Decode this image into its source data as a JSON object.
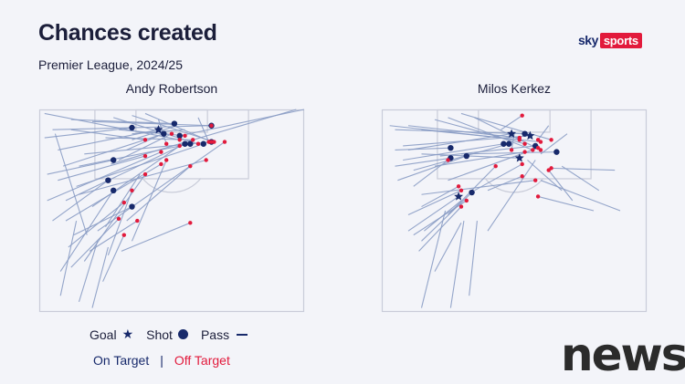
{
  "header": {
    "title": "Chances created",
    "subtitle": "Premier League, 2024/25"
  },
  "logo": {
    "sky": "sky",
    "sports": "sports"
  },
  "watermark": "news",
  "colors": {
    "on_target": "#17296b",
    "off_target": "#e21a3c",
    "pass_line": "#8a9cc4",
    "pitch_line": "#c9ccd9",
    "background": "#f3f4f9"
  },
  "legend": {
    "goal": "Goal",
    "shot": "Shot",
    "pass": "Pass",
    "on_target": "On Target",
    "separator": "|",
    "off_target": "Off Target"
  },
  "chart_data": [
    {
      "type": "scatter",
      "title": "Andy Robertson",
      "pitch": "half-pitch, attacking goal at top",
      "chances": [
        {
          "from": [
            0.07,
            0.2
          ],
          "to": [
            0.45,
            0.1
          ],
          "outcome": "goal"
        },
        {
          "from": [
            0.02,
            0.14
          ],
          "to": [
            0.35,
            0.09
          ],
          "outcome": "shot_on"
        },
        {
          "from": [
            0.12,
            0.05
          ],
          "to": [
            0.51,
            0.07
          ],
          "outcome": "shot_on"
        },
        {
          "from": [
            0.09,
            0.28
          ],
          "to": [
            0.47,
            0.12
          ],
          "outcome": "shot_on"
        },
        {
          "from": [
            0.1,
            0.45
          ],
          "to": [
            0.55,
            0.17
          ],
          "outcome": "shot_on"
        },
        {
          "from": [
            0.03,
            0.32
          ],
          "to": [
            0.28,
            0.25
          ],
          "outcome": "shot_on"
        },
        {
          "from": [
            0.05,
            0.55
          ],
          "to": [
            0.26,
            0.35
          ],
          "outcome": "shot_on"
        },
        {
          "from": [
            0.13,
            0.62
          ],
          "to": [
            0.35,
            0.48
          ],
          "outcome": "shot_on"
        },
        {
          "from": [
            0.08,
            0.8
          ],
          "to": [
            0.28,
            0.4
          ],
          "outcome": "shot_on"
        },
        {
          "from": [
            0.15,
            0.28
          ],
          "to": [
            0.57,
            0.17
          ],
          "outcome": "shot_on"
        },
        {
          "from": [
            0.14,
            0.38
          ],
          "to": [
            0.62,
            0.17
          ],
          "outcome": "shot_on"
        },
        {
          "from": [
            0.17,
            0.22
          ],
          "to": [
            0.65,
            0.16
          ],
          "outcome": "shot_on"
        },
        {
          "from": [
            1.0,
            0.0
          ],
          "to": [
            0.53,
            0.13
          ],
          "outcome": "shot_on"
        },
        {
          "from": [
            0.05,
            0.1
          ],
          "to": [
            0.65,
            0.08
          ],
          "outcome": "shot_on"
        },
        {
          "from": [
            0.22,
            0.6
          ],
          "to": [
            0.7,
            0.16
          ],
          "outcome": "shot_off"
        },
        {
          "from": [
            0.15,
            0.42
          ],
          "to": [
            0.63,
            0.25
          ],
          "outcome": "shot_off"
        },
        {
          "from": [
            0.2,
            0.48
          ],
          "to": [
            0.53,
            0.18
          ],
          "outcome": "shot_off"
        },
        {
          "from": [
            0.03,
            0.45
          ],
          "to": [
            0.46,
            0.21
          ],
          "outcome": "shot_off"
        },
        {
          "from": [
            0.07,
            0.35
          ],
          "to": [
            0.4,
            0.23
          ],
          "outcome": "shot_off"
        },
        {
          "from": [
            0.1,
            0.55
          ],
          "to": [
            0.46,
            0.27
          ],
          "outcome": "shot_off"
        },
        {
          "from": [
            0.17,
            0.75
          ],
          "to": [
            0.4,
            0.32
          ],
          "outcome": "shot_off"
        },
        {
          "from": [
            0.26,
            0.72
          ],
          "to": [
            0.35,
            0.4
          ],
          "outcome": "shot_off"
        },
        {
          "from": [
            0.11,
            0.68
          ],
          "to": [
            0.32,
            0.46
          ],
          "outcome": "shot_off"
        },
        {
          "from": [
            0.12,
            0.78
          ],
          "to": [
            0.3,
            0.54
          ],
          "outcome": "shot_off"
        },
        {
          "from": [
            0.19,
            0.7
          ],
          "to": [
            0.37,
            0.55
          ],
          "outcome": "shot_off"
        },
        {
          "from": [
            0.33,
            0.55
          ],
          "to": [
            0.57,
            0.28
          ],
          "outcome": "shot_off"
        },
        {
          "from": [
            0.24,
            0.85
          ],
          "to": [
            0.32,
            0.62
          ],
          "outcome": "shot_off"
        },
        {
          "from": [
            0.31,
            0.7
          ],
          "to": [
            0.57,
            0.56
          ],
          "outcome": "shot_off"
        },
        {
          "from": [
            0.35,
            0.65
          ],
          "to": [
            0.48,
            0.25
          ],
          "outcome": "shot_off"
        },
        {
          "from": [
            0.2,
            0.06
          ],
          "to": [
            0.65,
            0.08
          ],
          "outcome": "shot_off"
        },
        {
          "from": [
            0.3,
            0.1
          ],
          "to": [
            0.55,
            0.13
          ],
          "outcome": "shot_off"
        },
        {
          "from": [
            0.28,
            0.04
          ],
          "to": [
            0.6,
            0.17
          ],
          "outcome": "shot_off"
        },
        {
          "from": [
            0.12,
            0.1
          ],
          "to": [
            0.4,
            0.15
          ],
          "outcome": "shot_off"
        },
        {
          "from": [
            0.4,
            0.02
          ],
          "to": [
            0.65,
            0.16
          ],
          "outcome": "shot_off"
        },
        {
          "from": [
            0.45,
            0.05
          ],
          "to": [
            0.48,
            0.17
          ],
          "outcome": "shot_off"
        },
        {
          "from": [
            0.35,
            0.03
          ],
          "to": [
            0.66,
            0.16
          ],
          "outcome": "shot_off"
        },
        {
          "from": [
            0.6,
            0.04
          ],
          "to": [
            0.64,
            0.16
          ],
          "outcome": "shot_off"
        },
        {
          "from": [
            0.02,
            0.02
          ],
          "to": [
            0.53,
            0.15
          ],
          "outcome": "shot_off"
        },
        {
          "from": [
            0.3,
            0.25
          ],
          "to": [
            0.5,
            0.12
          ],
          "outcome": "shot_off"
        },
        {
          "from": [
            0.25,
            0.14
          ],
          "to": [
            0.58,
            0.15
          ],
          "outcome": "shot_off"
        },
        {
          "from": [
            0.97,
            0.0
          ],
          "to": [
            0.27,
            0.27
          ],
          "outcome": "pass"
        },
        {
          "from": [
            0.06,
            0.12
          ],
          "to": [
            0.18,
            0.62
          ],
          "outcome": "pass"
        },
        {
          "from": [
            0.25,
            0.58
          ],
          "to": [
            0.38,
            0.32
          ],
          "outcome": "pass"
        },
        {
          "from": [
            0.08,
            0.92
          ],
          "to": [
            0.14,
            0.55
          ],
          "outcome": "pass"
        },
        {
          "from": [
            0.15,
            0.95
          ],
          "to": [
            0.22,
            0.65
          ],
          "outcome": "pass"
        },
        {
          "from": [
            0.2,
            0.98
          ],
          "to": [
            0.26,
            0.68
          ],
          "outcome": "pass"
        },
        {
          "from": [
            0.52,
            0.08
          ],
          "to": [
            0.35,
            0.15
          ],
          "outcome": "pass"
        },
        {
          "from": [
            0.55,
            0.1
          ],
          "to": [
            0.35,
            0.12
          ],
          "outcome": "pass"
        },
        {
          "from": [
            0.45,
            0.13
          ],
          "to": [
            0.33,
            0.2
          ],
          "outcome": "pass"
        }
      ]
    },
    {
      "type": "scatter",
      "title": "Milos Kerkez",
      "pitch": "half-pitch, attacking goal at top",
      "chances": [
        {
          "from": [
            0.1,
            0.2
          ],
          "to": [
            0.49,
            0.12
          ],
          "outcome": "goal"
        },
        {
          "from": [
            0.08,
            0.18
          ],
          "to": [
            0.56,
            0.13
          ],
          "outcome": "goal"
        },
        {
          "from": [
            0.15,
            0.22
          ],
          "to": [
            0.52,
            0.24
          ],
          "outcome": "goal"
        },
        {
          "from": [
            0.1,
            0.6
          ],
          "to": [
            0.29,
            0.43
          ],
          "outcome": "goal"
        },
        {
          "from": [
            0.05,
            0.1
          ],
          "to": [
            0.54,
            0.12
          ],
          "outcome": "shot_on"
        },
        {
          "from": [
            0.08,
            0.25
          ],
          "to": [
            0.46,
            0.17
          ],
          "outcome": "shot_on"
        },
        {
          "from": [
            0.12,
            0.3
          ],
          "to": [
            0.48,
            0.17
          ],
          "outcome": "shot_on"
        },
        {
          "from": [
            0.22,
            0.23
          ],
          "to": [
            0.58,
            0.18
          ],
          "outcome": "shot_on"
        },
        {
          "from": [
            0.3,
            0.22
          ],
          "to": [
            0.66,
            0.21
          ],
          "outcome": "shot_on"
        },
        {
          "from": [
            0.05,
            0.2
          ],
          "to": [
            0.26,
            0.19
          ],
          "outcome": "shot_on"
        },
        {
          "from": [
            0.05,
            0.28
          ],
          "to": [
            0.26,
            0.24
          ],
          "outcome": "shot_on"
        },
        {
          "from": [
            0.06,
            0.35
          ],
          "to": [
            0.32,
            0.23
          ],
          "outcome": "shot_on"
        },
        {
          "from": [
            0.15,
            0.65
          ],
          "to": [
            0.34,
            0.41
          ],
          "outcome": "shot_on"
        },
        {
          "from": [
            0.03,
            0.08
          ],
          "to": [
            0.52,
            0.15
          ],
          "outcome": "shot_off"
        },
        {
          "from": [
            0.1,
            0.08
          ],
          "to": [
            0.52,
            0.14
          ],
          "outcome": "shot_off"
        },
        {
          "from": [
            0.15,
            0.1
          ],
          "to": [
            0.6,
            0.16
          ],
          "outcome": "shot_off"
        },
        {
          "from": [
            0.2,
            0.05
          ],
          "to": [
            0.54,
            0.17
          ],
          "outcome": "shot_off"
        },
        {
          "from": [
            0.25,
            0.04
          ],
          "to": [
            0.57,
            0.2
          ],
          "outcome": "shot_off"
        },
        {
          "from": [
            0.3,
            0.02
          ],
          "to": [
            0.64,
            0.15
          ],
          "outcome": "shot_off"
        },
        {
          "from": [
            0.35,
            0.04
          ],
          "to": [
            0.6,
            0.2
          ],
          "outcome": "shot_off"
        },
        {
          "from": [
            0.12,
            0.38
          ],
          "to": [
            0.25,
            0.25
          ],
          "outcome": "shot_off"
        },
        {
          "from": [
            0.15,
            0.48
          ],
          "to": [
            0.29,
            0.38
          ],
          "outcome": "shot_off"
        },
        {
          "from": [
            0.1,
            0.52
          ],
          "to": [
            0.3,
            0.4
          ],
          "outcome": "shot_off"
        },
        {
          "from": [
            0.12,
            0.62
          ],
          "to": [
            0.32,
            0.45
          ],
          "outcome": "shot_off"
        },
        {
          "from": [
            0.14,
            0.7
          ],
          "to": [
            0.3,
            0.48
          ],
          "outcome": "shot_off"
        },
        {
          "from": [
            0.25,
            0.52
          ],
          "to": [
            0.43,
            0.28
          ],
          "outcome": "shot_off"
        },
        {
          "from": [
            0.35,
            0.4
          ],
          "to": [
            0.53,
            0.27
          ],
          "outcome": "shot_off"
        },
        {
          "from": [
            0.4,
            0.4
          ],
          "to": [
            0.53,
            0.33
          ],
          "outcome": "shot_off"
        },
        {
          "from": [
            0.72,
            0.45
          ],
          "to": [
            0.63,
            0.3
          ],
          "outcome": "shot_off"
        },
        {
          "from": [
            0.8,
            0.5
          ],
          "to": [
            0.59,
            0.43
          ],
          "outcome": "shot_off"
        },
        {
          "from": [
            0.88,
            0.3
          ],
          "to": [
            0.64,
            0.29
          ],
          "outcome": "shot_off"
        },
        {
          "from": [
            0.45,
            0.1
          ],
          "to": [
            0.53,
            0.03
          ],
          "outcome": "shot_off"
        },
        {
          "from": [
            0.5,
            0.12
          ],
          "to": [
            0.49,
            0.2
          ],
          "outcome": "shot_off"
        },
        {
          "from": [
            0.15,
            0.42
          ],
          "to": [
            0.58,
            0.35
          ],
          "outcome": "shot_off"
        },
        {
          "from": [
            0.25,
            0.35
          ],
          "to": [
            0.59,
            0.19
          ],
          "outcome": "shot_off"
        },
        {
          "from": [
            0.2,
            0.28
          ],
          "to": [
            0.54,
            0.21
          ],
          "outcome": "shot_off"
        },
        {
          "from": [
            0.63,
            0.08
          ],
          "to": [
            0.59,
            0.15
          ],
          "outcome": "shot_off"
        },
        {
          "from": [
            0.15,
            0.98
          ],
          "to": [
            0.24,
            0.5
          ],
          "outcome": "pass"
        },
        {
          "from": [
            0.26,
            0.98
          ],
          "to": [
            0.31,
            0.55
          ],
          "outcome": "pass"
        },
        {
          "from": [
            0.33,
            0.92
          ],
          "to": [
            0.36,
            0.55
          ],
          "outcome": "pass"
        },
        {
          "from": [
            0.2,
            0.8
          ],
          "to": [
            0.3,
            0.56
          ],
          "outcome": "pass"
        },
        {
          "from": [
            0.3,
            0.45
          ],
          "to": [
            0.16,
            0.6
          ],
          "outcome": "pass"
        },
        {
          "from": [
            0.4,
            0.6
          ],
          "to": [
            0.58,
            0.25
          ],
          "outcome": "pass"
        },
        {
          "from": [
            0.6,
            0.35
          ],
          "to": [
            0.9,
            0.5
          ],
          "outcome": "pass"
        },
        {
          "from": [
            0.7,
            0.12
          ],
          "to": [
            0.6,
            0.22
          ],
          "outcome": "pass"
        },
        {
          "from": [
            0.68,
            0.4
          ],
          "to": [
            0.55,
            0.25
          ],
          "outcome": "pass"
        },
        {
          "from": [
            0.82,
            0.4
          ],
          "to": [
            0.68,
            0.28
          ],
          "outcome": "pass"
        }
      ]
    }
  ]
}
